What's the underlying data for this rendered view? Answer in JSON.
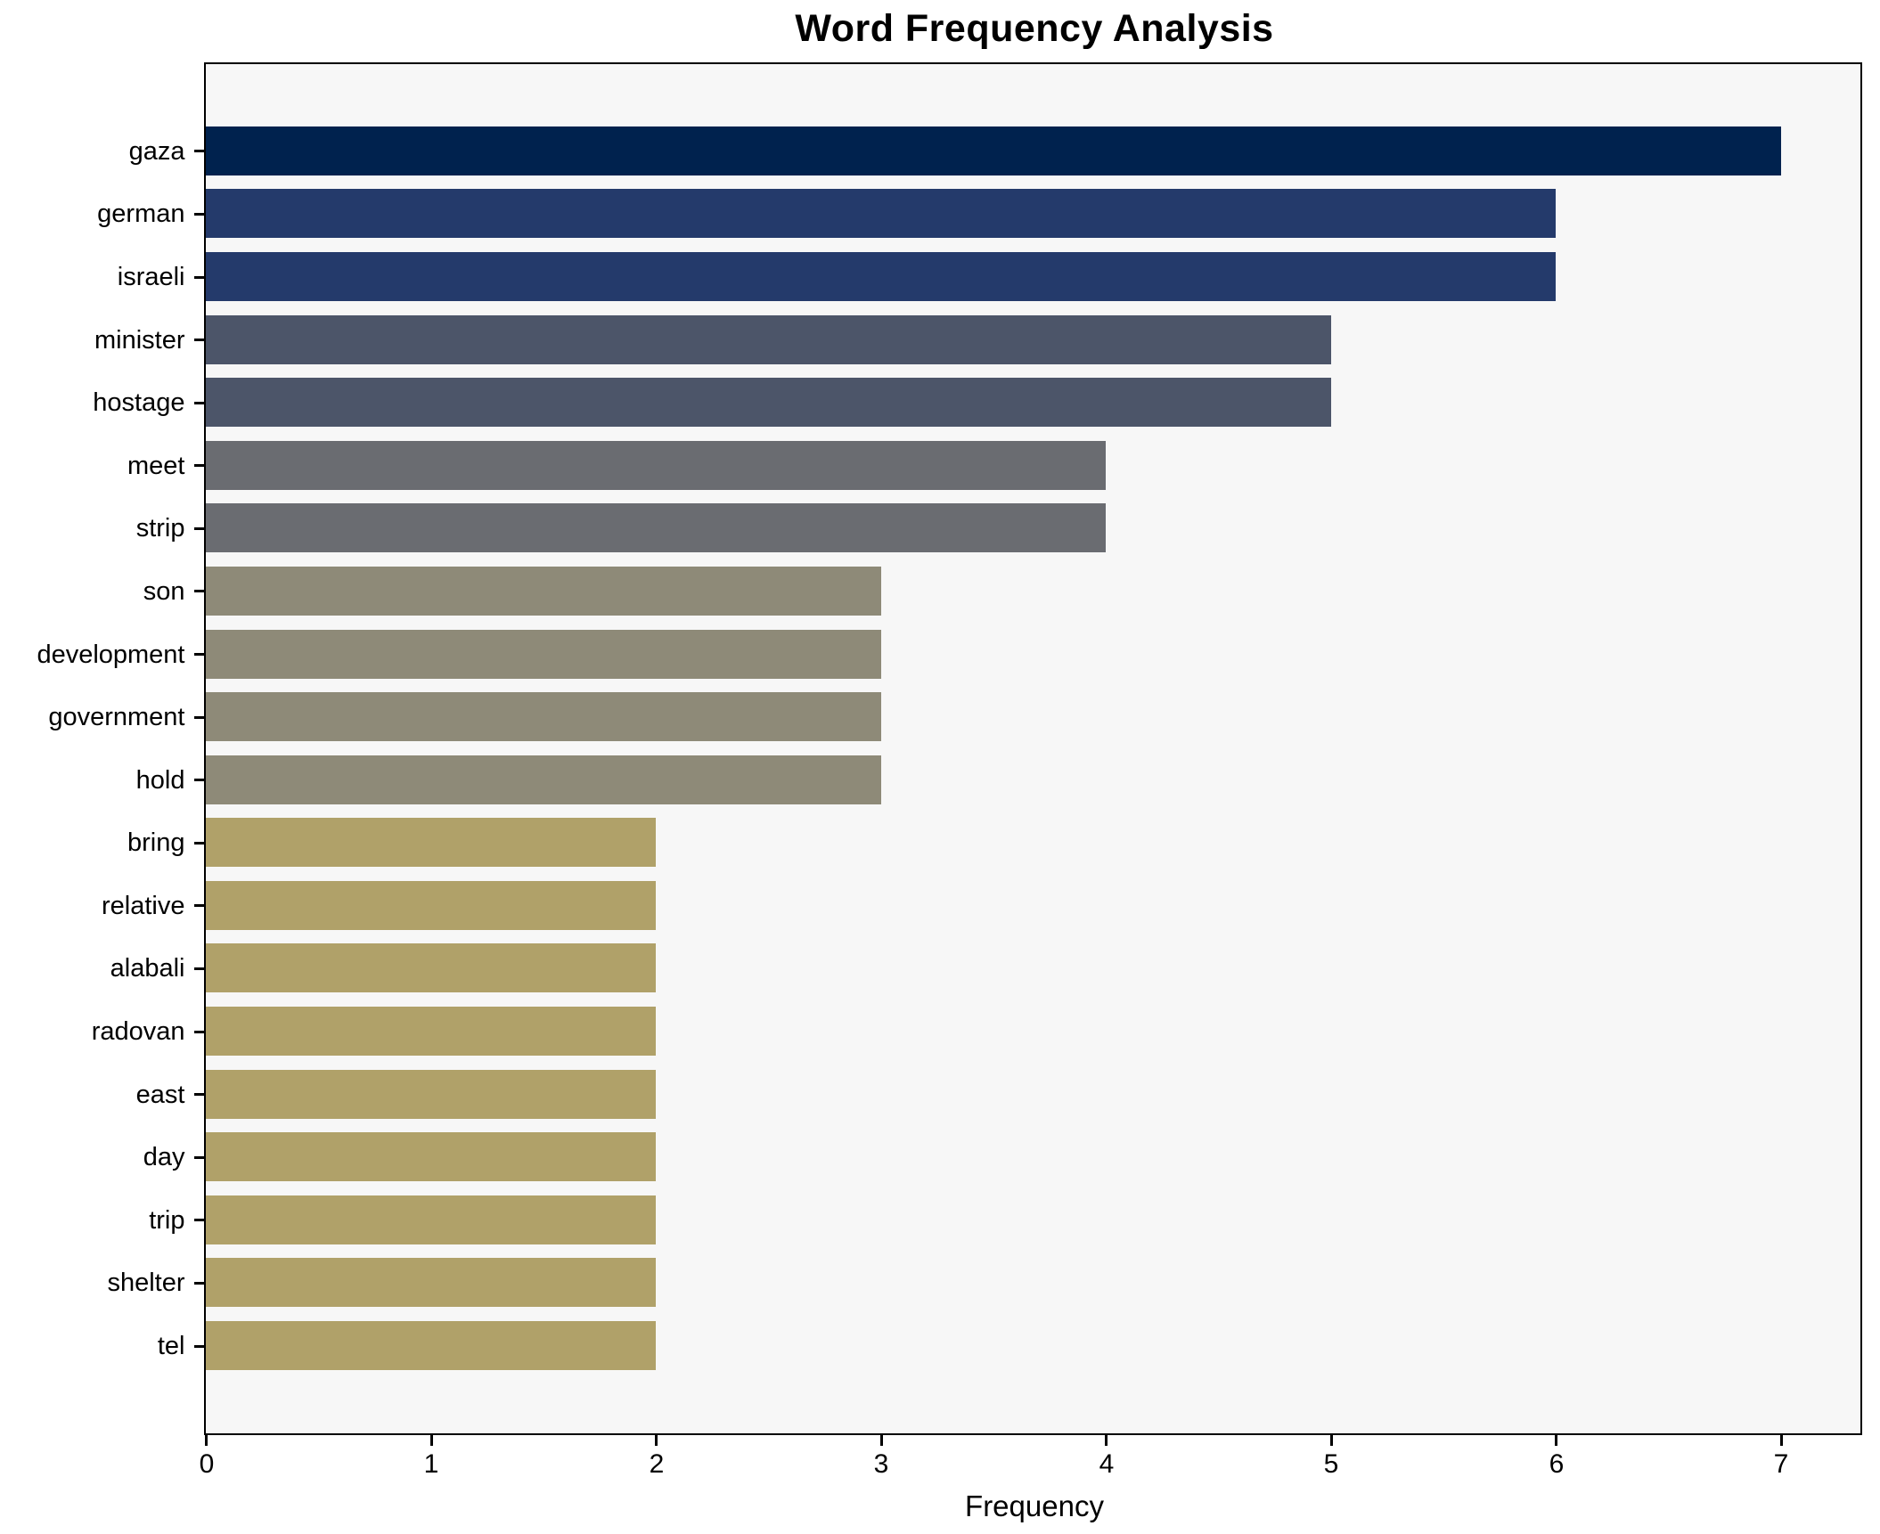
{
  "chart_data": {
    "type": "bar",
    "orientation": "horizontal",
    "title": "Word Frequency Analysis",
    "xlabel": "Frequency",
    "ylabel": "",
    "xlim": [
      0,
      7.35
    ],
    "xticks": [
      0,
      1,
      2,
      3,
      4,
      5,
      6,
      7
    ],
    "grid": false,
    "legend": null,
    "plot_background": "#f7f7f7",
    "spine_color": "#000000",
    "text_color": "#000000",
    "categories": [
      "gaza",
      "german",
      "israeli",
      "minister",
      "hostage",
      "meet",
      "strip",
      "son",
      "development",
      "government",
      "hold",
      "bring",
      "relative",
      "alabali",
      "radovan",
      "east",
      "day",
      "trip",
      "shelter",
      "tel"
    ],
    "values": [
      7,
      6,
      6,
      5,
      5,
      4,
      4,
      3,
      3,
      3,
      3,
      2,
      2,
      2,
      2,
      2,
      2,
      2,
      2,
      2
    ],
    "bar_colors_by_value": {
      "7": "#00224e",
      "6": "#243a6b",
      "5": "#4c5569",
      "4": "#6a6c71",
      "3": "#8e8a78",
      "2": "#b0a169"
    }
  }
}
